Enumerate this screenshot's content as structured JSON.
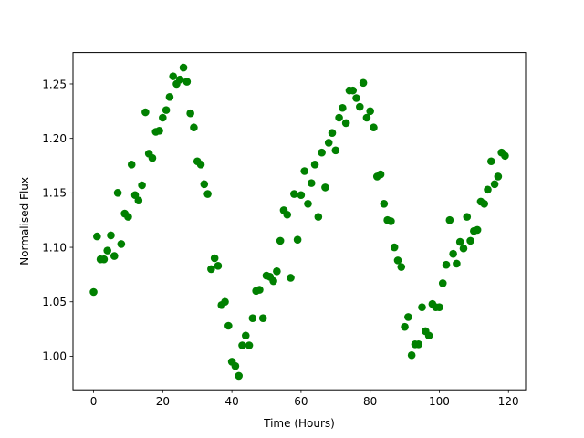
{
  "chart_data": {
    "type": "scatter",
    "title": "",
    "xlabel": "Time (Hours)",
    "ylabel": "Normalised Flux",
    "xlim": [
      -5.95,
      124.95
    ],
    "ylim": [
      0.9692,
      1.2788
    ],
    "xticks": [
      0,
      20,
      40,
      60,
      80,
      100,
      120
    ],
    "yticks": [
      1.0,
      1.05,
      1.1,
      1.15,
      1.2,
      1.25
    ],
    "xtick_labels": [
      "0",
      "20",
      "40",
      "60",
      "80",
      "100",
      "120"
    ],
    "ytick_labels": [
      "1.00",
      "1.05",
      "1.10",
      "1.15",
      "1.20",
      "1.25"
    ],
    "grid": false,
    "legend": "none",
    "series": [
      {
        "color": "#008000",
        "marker": "circle",
        "points": [
          [
            0,
            1.059
          ],
          [
            1,
            1.11
          ],
          [
            2,
            1.089
          ],
          [
            3,
            1.089
          ],
          [
            4,
            1.097
          ],
          [
            5,
            1.111
          ],
          [
            6,
            1.092
          ],
          [
            7,
            1.15
          ],
          [
            8,
            1.103
          ],
          [
            9,
            1.131
          ],
          [
            10,
            1.128
          ],
          [
            11,
            1.176
          ],
          [
            12,
            1.148
          ],
          [
            13,
            1.143
          ],
          [
            14,
            1.157
          ],
          [
            15,
            1.224
          ],
          [
            16,
            1.186
          ],
          [
            17,
            1.182
          ],
          [
            18,
            1.206
          ],
          [
            19,
            1.207
          ],
          [
            20,
            1.219
          ],
          [
            21,
            1.226
          ],
          [
            22,
            1.238
          ],
          [
            23,
            1.257
          ],
          [
            24,
            1.25
          ],
          [
            25,
            1.254
          ],
          [
            26,
            1.265
          ],
          [
            27,
            1.252
          ],
          [
            28,
            1.223
          ],
          [
            29,
            1.21
          ],
          [
            30,
            1.179
          ],
          [
            31,
            1.176
          ],
          [
            32,
            1.158
          ],
          [
            33,
            1.149
          ],
          [
            34,
            1.08
          ],
          [
            35,
            1.09
          ],
          [
            36,
            1.083
          ],
          [
            37,
            1.047
          ],
          [
            38,
            1.05
          ],
          [
            39,
            1.028
          ],
          [
            40,
            0.995
          ],
          [
            41,
            0.991
          ],
          [
            42,
            0.982
          ],
          [
            43,
            1.01
          ],
          [
            44,
            1.019
          ],
          [
            45,
            1.01
          ],
          [
            46,
            1.035
          ],
          [
            47,
            1.06
          ],
          [
            48,
            1.061
          ],
          [
            49,
            1.035
          ],
          [
            50,
            1.074
          ],
          [
            51,
            1.073
          ],
          [
            52,
            1.069
          ],
          [
            53,
            1.078
          ],
          [
            54,
            1.106
          ],
          [
            55,
            1.134
          ],
          [
            56,
            1.13
          ],
          [
            57,
            1.072
          ],
          [
            58,
            1.149
          ],
          [
            59,
            1.107
          ],
          [
            60,
            1.148
          ],
          [
            61,
            1.17
          ],
          [
            62,
            1.14
          ],
          [
            63,
            1.159
          ],
          [
            64,
            1.176
          ],
          [
            65,
            1.128
          ],
          [
            66,
            1.187
          ],
          [
            67,
            1.155
          ],
          [
            68,
            1.196
          ],
          [
            69,
            1.205
          ],
          [
            70,
            1.189
          ],
          [
            71,
            1.219
          ],
          [
            72,
            1.228
          ],
          [
            73,
            1.214
          ],
          [
            74,
            1.244
          ],
          [
            75,
            1.244
          ],
          [
            76,
            1.237
          ],
          [
            77,
            1.229
          ],
          [
            78,
            1.251
          ],
          [
            79,
            1.219
          ],
          [
            80,
            1.225
          ],
          [
            81,
            1.21
          ],
          [
            82,
            1.165
          ],
          [
            83,
            1.167
          ],
          [
            84,
            1.14
          ],
          [
            85,
            1.125
          ],
          [
            86,
            1.124
          ],
          [
            87,
            1.1
          ],
          [
            88,
            1.088
          ],
          [
            89,
            1.082
          ],
          [
            90,
            1.027
          ],
          [
            91,
            1.036
          ],
          [
            92,
            1.001
          ],
          [
            93,
            1.011
          ],
          [
            94,
            1.011
          ],
          [
            95,
            1.045
          ],
          [
            96,
            1.023
          ],
          [
            97,
            1.019
          ],
          [
            98,
            1.048
          ],
          [
            99,
            1.045
          ],
          [
            100,
            1.045
          ],
          [
            101,
            1.067
          ],
          [
            102,
            1.084
          ],
          [
            103,
            1.125
          ],
          [
            104,
            1.094
          ],
          [
            105,
            1.085
          ],
          [
            106,
            1.105
          ],
          [
            107,
            1.099
          ],
          [
            108,
            1.128
          ],
          [
            109,
            1.106
          ],
          [
            110,
            1.115
          ],
          [
            111,
            1.116
          ],
          [
            112,
            1.142
          ],
          [
            113,
            1.14
          ],
          [
            114,
            1.153
          ],
          [
            115,
            1.179
          ],
          [
            116,
            1.158
          ],
          [
            117,
            1.165
          ],
          [
            118,
            1.187
          ],
          [
            119,
            1.184
          ]
        ]
      }
    ]
  }
}
